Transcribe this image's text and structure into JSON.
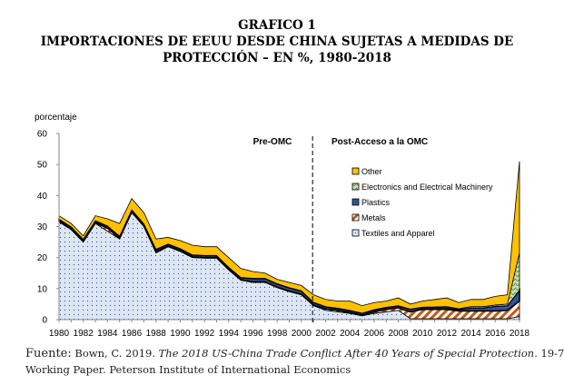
{
  "header": {
    "line1": "GRAFICO 1",
    "line2": "IMPORTACIONES DE EEUU DESDE CHINA SUJETAS A MEDIDAS DE",
    "line3": "PROTECCIÓN – EN %, 1980-2018"
  },
  "source": {
    "label": "Fuente:",
    "text_plain": "Bown, C. 2019. ",
    "text_italic": "The 2018 US-China Trade Conflict After 40 Years of Special Protection.",
    "text_end": " 19-7",
    "line2": "Working Paper. Peterson Institute of International Economics"
  },
  "chart_data": {
    "type": "area",
    "stacked": true,
    "ylabel": "porcentaje",
    "ylim": [
      0,
      60
    ],
    "yticks": [
      "0",
      "10",
      "20",
      "30",
      "40",
      "50",
      "60"
    ],
    "xticks": [
      "1980",
      "1982",
      "1984",
      "1986",
      "1988",
      "1990",
      "1992",
      "1994",
      "1996",
      "1998",
      "2000",
      "2002",
      "2004",
      "2006",
      "2008",
      "2010",
      "2012",
      "2014",
      "2016",
      "2018"
    ],
    "x": [
      1980,
      1981,
      1982,
      1983,
      1984,
      1985,
      1986,
      1987,
      1988,
      1989,
      1990,
      1991,
      1992,
      1993,
      1994,
      1995,
      1996,
      1997,
      1998,
      1999,
      2000,
      2001,
      2002,
      2003,
      2004,
      2005,
      2006,
      2007,
      2008,
      2009,
      2010,
      2011,
      2012,
      2013,
      2014,
      2015,
      2016,
      2017,
      2018
    ],
    "annotations": {
      "pre": "Pre-OMC",
      "post": "Post-Acceso a la OMC",
      "divider_year": 2001
    },
    "legend_position": "center-right",
    "series": [
      {
        "name": "Textiles and Apparel",
        "color": "#dce6f5",
        "values": [
          31.5,
          29,
          25,
          31,
          28.5,
          26,
          34.5,
          30,
          21.5,
          23.5,
          22,
          20,
          19.8,
          19.8,
          16,
          12.7,
          12,
          12,
          10.3,
          9,
          8,
          4.5,
          3,
          2.5,
          2,
          1.2,
          2,
          2.5,
          3,
          0.3,
          0.3,
          0.3,
          0.3,
          0.3,
          0.3,
          0.3,
          0.3,
          0.3,
          1
        ]
      },
      {
        "name": "Metals",
        "color": "#c55a11",
        "values": [
          0.2,
          0.2,
          0.2,
          0.2,
          1,
          0.2,
          0.2,
          0.2,
          0.5,
          0.2,
          0.2,
          0.2,
          0.2,
          0.2,
          0.2,
          0.2,
          0.2,
          0.2,
          0.2,
          0.2,
          0.2,
          0.2,
          0.5,
          0.5,
          0.3,
          0.2,
          0.5,
          0.8,
          0.8,
          2.2,
          3,
          3,
          3,
          2.5,
          2.5,
          2.5,
          2.5,
          2.7,
          5
        ]
      },
      {
        "name": "Plastics",
        "color": "#2f5597",
        "values": [
          0.6,
          0.6,
          0.6,
          0.6,
          0.6,
          0.6,
          0.6,
          0.6,
          0.6,
          0.6,
          0.6,
          0.6,
          0.6,
          0.6,
          0.6,
          0.6,
          1,
          1,
          1,
          1,
          1,
          0.8,
          0.6,
          0.6,
          0.6,
          0.6,
          0.6,
          0.6,
          0.6,
          0.8,
          0.6,
          0.6,
          0.6,
          0.5,
          1,
          1,
          1.5,
          1.5,
          3.5
        ]
      },
      {
        "name": "Electronics and Electrical Machinery",
        "color": "#a9d18e",
        "values": [
          0.1,
          0.1,
          0.1,
          0.1,
          0.1,
          0.1,
          0.1,
          0.1,
          0.1,
          0.1,
          0.1,
          0.1,
          0.1,
          0.1,
          0.1,
          0.1,
          0.1,
          0.1,
          0.1,
          0.1,
          0.1,
          0.1,
          0.1,
          0.1,
          0.1,
          0.1,
          0.1,
          0.1,
          0.1,
          0.1,
          0.1,
          0.2,
          0.3,
          0.2,
          0.4,
          0.4,
          0.4,
          0.5,
          12
        ]
      },
      {
        "name": "Other",
        "color": "#ffc000",
        "values": [
          1.1,
          1.1,
          1.1,
          1.6,
          2.3,
          4.1,
          3.6,
          3.6,
          3.3,
          2.1,
          2.6,
          3.1,
          2.8,
          2.8,
          3.1,
          2.9,
          2.2,
          1.7,
          1.4,
          1.7,
          1.7,
          2.4,
          2.3,
          2.3,
          3,
          2.4,
          2.3,
          2,
          2.5,
          1.6,
          2,
          2.4,
          2.8,
          2,
          2.3,
          2.3,
          2.8,
          3,
          29.5
        ]
      }
    ]
  }
}
